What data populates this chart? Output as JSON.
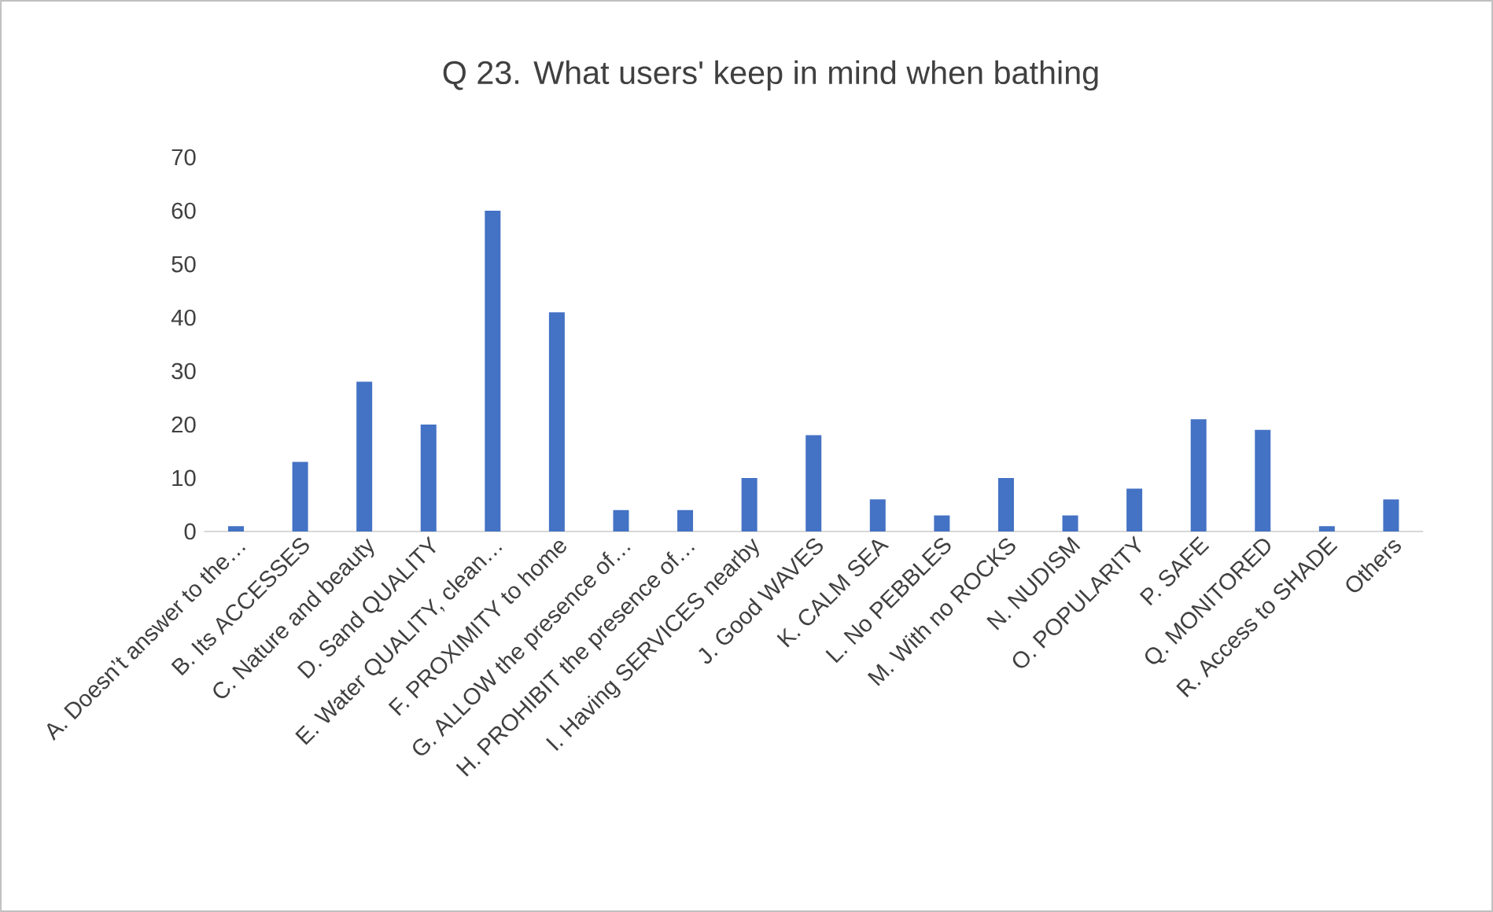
{
  "chart_data": {
    "type": "bar",
    "title": "Q 23. What users' keep in mind when bathing",
    "categories": [
      "A. Doesn’t answer to the…",
      "B. Its  ACCESSES",
      "C. Nature and beauty",
      "D. Sand QUALITY",
      "E. Water QUALITY, clean…",
      "F. PROXIMITY to home",
      "G. ALLOW the presence of…",
      "H. PROHIBIT the presence of…",
      "I. Having SERVICES nearby",
      "J. Good WAVES",
      "K. CALM SEA",
      "L. No PEBBLES",
      "M. With no ROCKS",
      "N. NUDISM",
      "O. POPULARITY",
      "P. SAFE",
      "Q. MONITORED",
      "R. Access to SHADE",
      "Others"
    ],
    "values": [
      1,
      13,
      28,
      20,
      60,
      41,
      4,
      4,
      10,
      18,
      6,
      3,
      10,
      3,
      8,
      21,
      19,
      1,
      6
    ],
    "color": "#4472c4",
    "ylim": [
      0,
      70
    ],
    "yticks": [
      0,
      10,
      20,
      30,
      40,
      50,
      60,
      70
    ]
  }
}
